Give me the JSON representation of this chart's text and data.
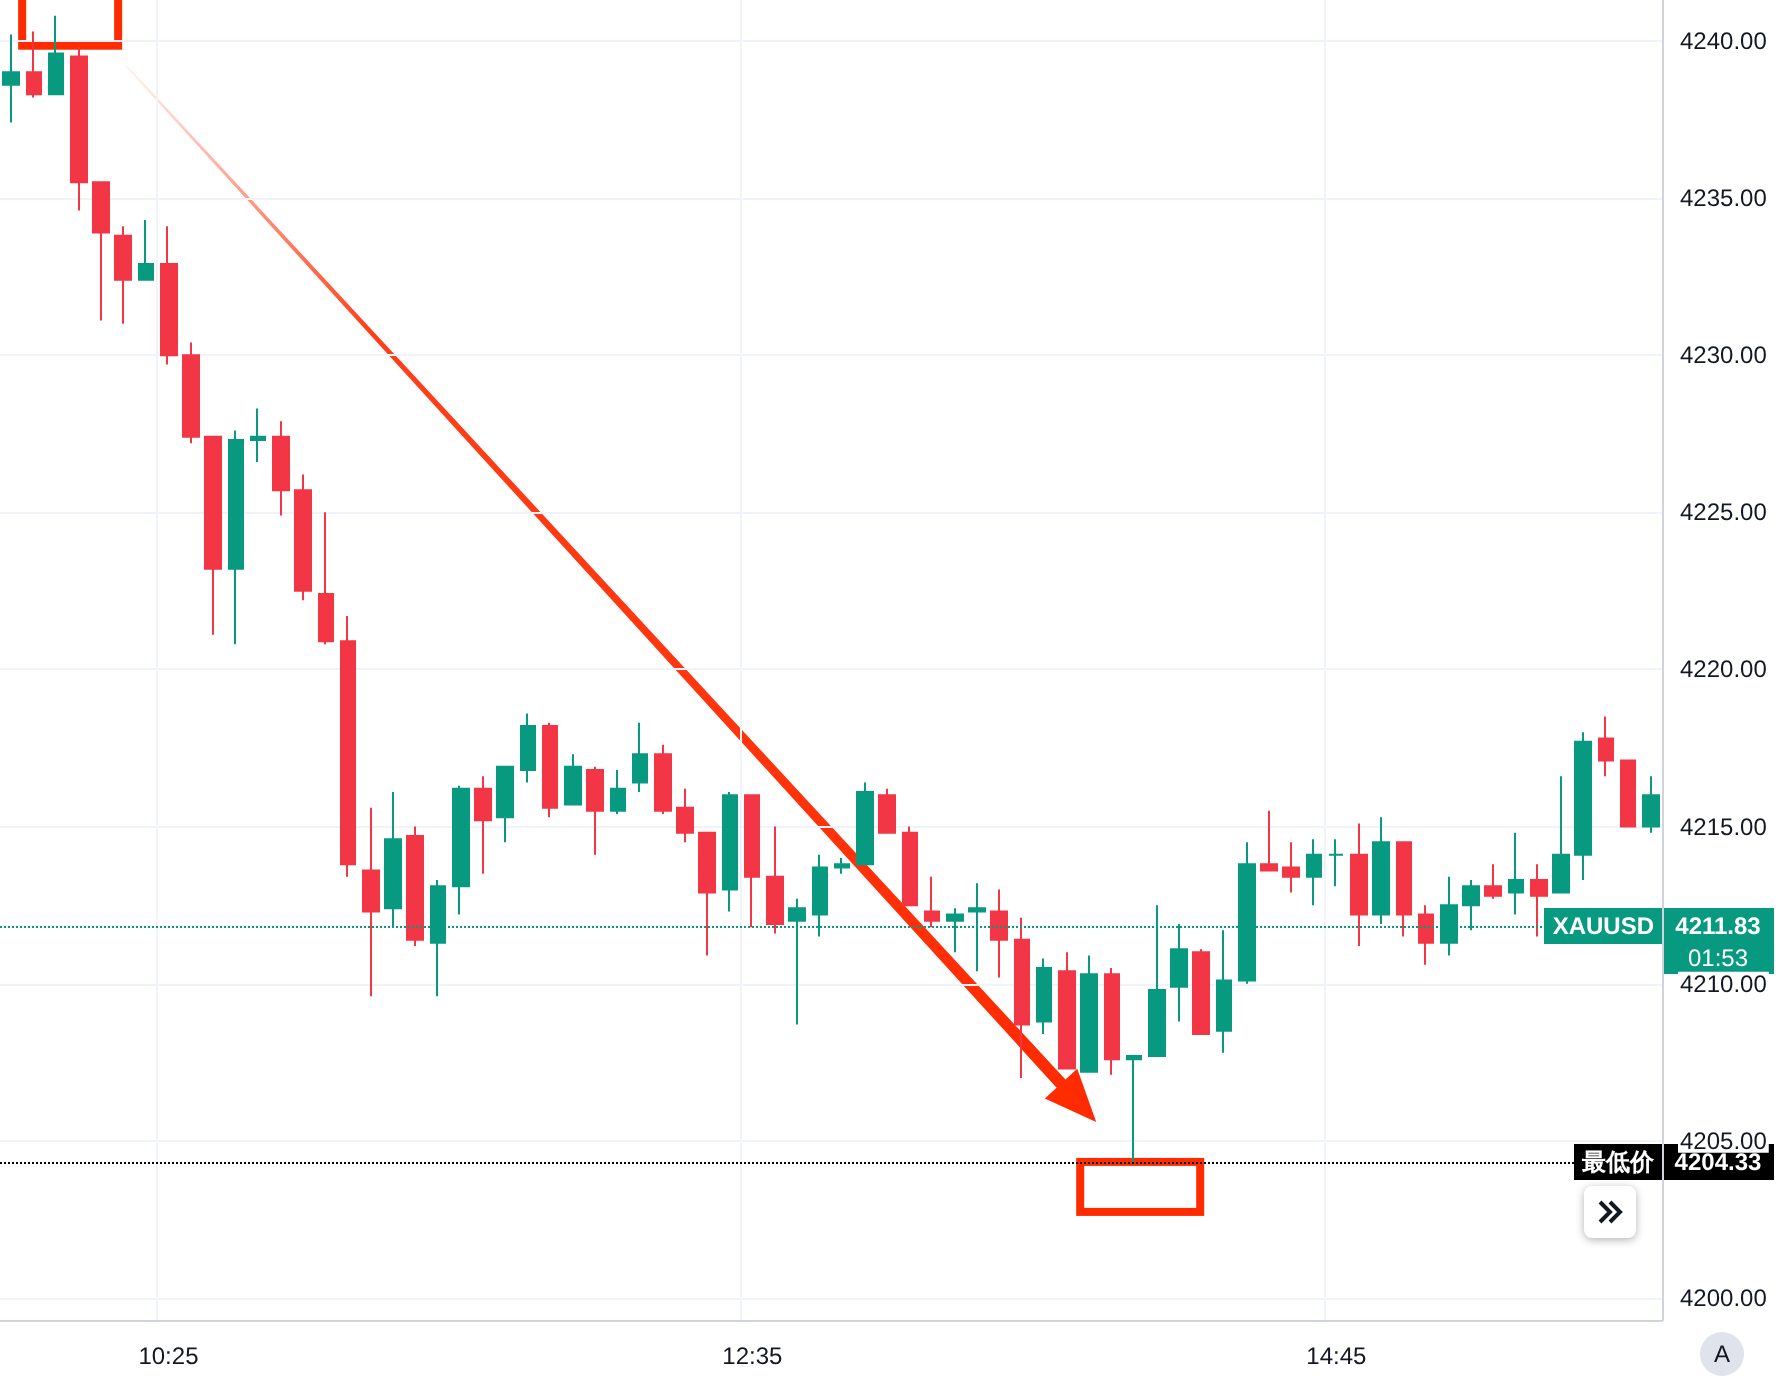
{
  "chart_data": {
    "type": "candlestick",
    "categories": [
      null,
      null,
      null,
      null,
      null,
      null,
      null,
      "10:25",
      null,
      null,
      null,
      null,
      null,
      null,
      null,
      null,
      null,
      null,
      null,
      null,
      null,
      null,
      null,
      null,
      null,
      null,
      null,
      null,
      null,
      null,
      null,
      null,
      null,
      "12:35",
      null,
      null,
      null,
      null,
      null,
      null,
      null,
      null,
      null,
      null,
      null,
      null,
      null,
      null,
      null,
      null,
      null,
      null,
      null,
      null,
      null,
      null,
      null,
      null,
      null,
      "14:45",
      null,
      null,
      null,
      null,
      null,
      null,
      null,
      null,
      null,
      null,
      null,
      null,
      null,
      null
    ],
    "ohlc": [
      [
        4238.6,
        4240.2,
        4237.4,
        4239.0
      ],
      [
        4239.0,
        4240.3,
        4238.2,
        4238.3
      ],
      [
        4238.3,
        4240.8,
        4238.3,
        4239.6
      ],
      [
        4239.5,
        4239.8,
        4234.6,
        4235.5
      ],
      [
        4235.5,
        4235.5,
        4231.1,
        4233.9
      ],
      [
        4233.8,
        4234.1,
        4231.0,
        4232.4
      ],
      [
        4232.4,
        4234.3,
        4232.4,
        4232.9
      ],
      [
        4232.9,
        4234.1,
        4229.7,
        4230.0
      ],
      [
        4230.0,
        4230.4,
        4227.2,
        4227.4
      ],
      [
        4227.4,
        4227.4,
        4221.1,
        4223.2
      ],
      [
        4223.2,
        4227.6,
        4220.8,
        4227.3
      ],
      [
        4227.3,
        4228.3,
        4226.6,
        4227.4
      ],
      [
        4227.4,
        4227.9,
        4224.9,
        4225.7
      ],
      [
        4225.7,
        4226.2,
        4222.2,
        4222.5
      ],
      [
        4222.4,
        4225.0,
        4220.8,
        4220.9
      ],
      [
        4220.9,
        4221.7,
        4213.4,
        4213.8
      ],
      [
        4213.6,
        4215.6,
        4209.6,
        4212.3
      ],
      [
        4212.4,
        4216.1,
        4211.8,
        4214.6
      ],
      [
        4214.7,
        4215.0,
        4211.2,
        4211.4
      ],
      [
        4211.3,
        4213.3,
        4209.6,
        4213.1
      ],
      [
        4213.1,
        4216.3,
        4212.2,
        4216.2
      ],
      [
        4216.2,
        4216.6,
        4213.5,
        4215.2
      ],
      [
        4215.3,
        4216.9,
        4214.5,
        4216.9
      ],
      [
        4216.8,
        4218.6,
        4216.4,
        4218.2
      ],
      [
        4218.2,
        4218.3,
        4215.3,
        4215.6
      ],
      [
        4215.7,
        4217.3,
        4215.7,
        4216.9
      ],
      [
        4216.8,
        4216.9,
        4214.1,
        4215.5
      ],
      [
        4215.5,
        4216.8,
        4215.4,
        4216.2
      ],
      [
        4216.4,
        4218.3,
        4216.1,
        4217.3
      ],
      [
        4217.3,
        4217.6,
        4215.4,
        4215.5
      ],
      [
        4215.6,
        4216.2,
        4214.5,
        4214.8
      ],
      [
        4214.8,
        4214.8,
        4210.9,
        4212.9
      ],
      [
        4213.0,
        4216.1,
        4212.3,
        4216.0
      ],
      [
        4216.0,
        4216.0,
        4211.8,
        4213.4
      ],
      [
        4213.4,
        4215.0,
        4211.6,
        4211.9
      ],
      [
        4212.0,
        4212.7,
        4208.7,
        4212.4
      ],
      [
        4212.2,
        4214.1,
        4211.5,
        4213.7
      ],
      [
        4213.7,
        4214.0,
        4213.5,
        4213.8
      ],
      [
        4213.8,
        4216.4,
        4213.8,
        4216.1
      ],
      [
        4216.0,
        4216.2,
        4214.8,
        4214.8
      ],
      [
        4214.8,
        4215.0,
        4212.5,
        4212.5
      ],
      [
        4212.3,
        4213.4,
        4211.8,
        4212.0
      ],
      [
        4212.0,
        4212.4,
        4211.0,
        4212.2
      ],
      [
        4212.3,
        4213.2,
        4210.4,
        4212.4
      ],
      [
        4212.3,
        4213.0,
        4210.2,
        4211.4
      ],
      [
        4211.4,
        4212.1,
        4207.0,
        4208.7
      ],
      [
        4208.8,
        4210.8,
        4208.4,
        4210.5
      ],
      [
        4210.4,
        4211.0,
        4207.3,
        4207.3
      ],
      [
        4207.2,
        4210.9,
        4207.2,
        4210.3
      ],
      [
        4210.3,
        4210.5,
        4207.1,
        4207.6
      ],
      [
        4207.6,
        4207.7,
        4204.33,
        4207.7
      ],
      [
        4207.7,
        4212.5,
        4207.7,
        4209.8
      ],
      [
        4209.9,
        4211.9,
        4208.8,
        4211.1
      ],
      [
        4211.0,
        4211.1,
        4208.4,
        4208.4
      ],
      [
        4208.5,
        4211.7,
        4207.8,
        4210.1
      ],
      [
        4210.1,
        4214.5,
        4210.0,
        4213.8
      ],
      [
        4213.8,
        4215.5,
        4213.6,
        4213.6
      ],
      [
        4213.7,
        4214.5,
        4212.9,
        4213.4
      ],
      [
        4213.4,
        4214.6,
        4212.5,
        4214.1
      ],
      [
        4214.1,
        4214.6,
        4213.1,
        4214.1
      ],
      [
        4214.1,
        4215.1,
        4211.2,
        4212.2
      ],
      [
        4212.2,
        4215.3,
        4211.9,
        4214.5
      ],
      [
        4214.5,
        4214.5,
        4211.5,
        4212.2
      ],
      [
        4212.2,
        4212.5,
        4210.6,
        4211.3
      ],
      [
        4211.3,
        4213.4,
        4210.9,
        4212.5
      ],
      [
        4212.5,
        4213.3,
        4211.7,
        4213.1
      ],
      [
        4213.1,
        4213.8,
        4212.7,
        4212.8
      ],
      [
        4212.9,
        4214.8,
        4212.2,
        4213.3
      ],
      [
        4213.3,
        4213.8,
        4211.5,
        4212.8
      ],
      [
        4212.9,
        4216.6,
        4212.9,
        4214.1
      ],
      [
        4214.1,
        4218.0,
        4213.3,
        4217.7
      ],
      [
        4217.8,
        4218.5,
        4216.6,
        4217.1
      ],
      [
        4217.1,
        4217.1,
        4215.0,
        4215.0
      ],
      [
        4215.0,
        4216.6,
        4214.8,
        4216.0
      ]
    ],
    "colors": [
      "#089981",
      "#f23645",
      "#089981",
      "#f23645",
      "#f23645",
      "#f23645",
      "#089981",
      "#f23645",
      "#f23645",
      "#f23645",
      "#089981",
      "#089981",
      "#f23645",
      "#f23645",
      "#f23645",
      "#f23645",
      "#f23645",
      "#089981",
      "#f23645",
      "#089981",
      "#089981",
      "#f23645",
      "#089981",
      "#089981",
      "#f23645",
      "#089981",
      "#f23645",
      "#089981",
      "#089981",
      "#f23645",
      "#f23645",
      "#f23645",
      "#089981",
      "#f23645",
      "#f23645",
      "#089981",
      "#089981",
      "#089981",
      "#089981",
      "#f23645",
      "#f23645",
      "#f23645",
      "#089981",
      "#089981",
      "#f23645",
      "#f23645",
      "#089981",
      "#f23645",
      "#089981",
      "#f23645",
      "#089981",
      "#089981",
      "#089981",
      "#f23645",
      "#089981",
      "#089981",
      "#f23645",
      "#f23645",
      "#089981",
      "#089981",
      "#f23645",
      "#089981",
      "#f23645",
      "#f23645",
      "#089981",
      "#089981",
      "#f23645",
      "#089981",
      "#f23645",
      "#089981",
      "#089981",
      "#f23645",
      "#f23645",
      "#089981"
    ],
    "ylim": [
      4199.3,
      4241.3
    ],
    "yticks": [
      {
        "value": 4200,
        "label": "4200.00"
      },
      {
        "value": 4205,
        "label": "4205.00"
      },
      {
        "value": 4210,
        "label": "4210.00"
      },
      {
        "value": 4215,
        "label": "4215.00"
      },
      {
        "value": 4220,
        "label": "4220.00"
      },
      {
        "value": 4225,
        "label": "4225.00"
      },
      {
        "value": 4230,
        "label": "4230.00"
      },
      {
        "value": 4235,
        "label": "4235.00"
      },
      {
        "value": 4240,
        "label": "4240.00"
      }
    ],
    "grid": true,
    "ref_lines": [
      {
        "axis": "y",
        "value": 4211.83,
        "label": "XAUUSD",
        "color": "#089981",
        "line_style": "dotted"
      },
      {
        "axis": "y",
        "value": 4204.33,
        "label": "最低价",
        "color": "#000000",
        "line_style": "dotted"
      }
    ],
    "annotations": [
      "01:53",
      "A",
      "4211.83",
      "4204.33"
    ]
  }
}
